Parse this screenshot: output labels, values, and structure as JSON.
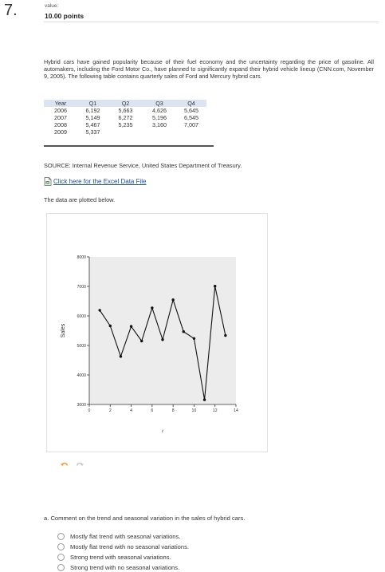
{
  "question": {
    "number": "7.",
    "value_label": "value:",
    "points": "10.00 points",
    "intro": "Hybrid cars have gained popularity because of their fuel economy and the uncertainty regarding the price of gasoline. All automakers, including the Ford Motor Co., have planned to significantly expand their hybrid vehicle lineup (CNN.com, November 9, 2005). The following table contains quarterly sales of Ford and Mercury hybrid cars.",
    "source": "SOURCE: Internal Revenue Service, United States Department of Treasury.",
    "excel_link": "Click here for the Excel Data File",
    "plotted_text": "The data are plotted below.",
    "part_a": "a. Comment on the trend and seasonal variation in the sales of hybrid cars.",
    "options": [
      "Mostly flat trend with seasonal variations.",
      "Mostly flat trend with no seasonal variations.",
      "Strong trend with seasonal variations.",
      "Strong trend with no seasonal variations."
    ]
  },
  "table": {
    "headers": [
      "Year",
      "Q1",
      "Q2",
      "Q3",
      "Q4"
    ],
    "rows": [
      [
        "2006",
        "6,192",
        "5,663",
        "4,626",
        "5,645"
      ],
      [
        "2007",
        "5,149",
        "6,272",
        "5,196",
        "6,545"
      ],
      [
        "2008",
        "5,467",
        "5,235",
        "3,160",
        "7,007"
      ],
      [
        "2009",
        "5,337",
        "",
        "",
        ""
      ]
    ]
  },
  "chart_data": {
    "type": "line",
    "x": [
      1,
      2,
      3,
      4,
      5,
      6,
      7,
      8,
      9,
      10,
      11,
      12,
      13
    ],
    "y": [
      6192,
      5663,
      4626,
      5645,
      5149,
      6272,
      5196,
      6545,
      5467,
      5235,
      3160,
      7007,
      5337
    ],
    "xlabel": "t",
    "ylabel": "Sales",
    "xlim": [
      0,
      14
    ],
    "ylim": [
      3000,
      8000
    ],
    "xticks": [
      "0",
      "2",
      "4",
      "6",
      "8",
      "10",
      "12",
      "14"
    ],
    "yticks": [
      "3000",
      "4000",
      "5000",
      "6000",
      "7000",
      "8000"
    ],
    "plot_background": "#ececec",
    "line_color": "#111111",
    "grid": false
  },
  "icons": {
    "excel": "excel-file-icon",
    "undo": "undo-icon",
    "redo": "redo-icon"
  }
}
